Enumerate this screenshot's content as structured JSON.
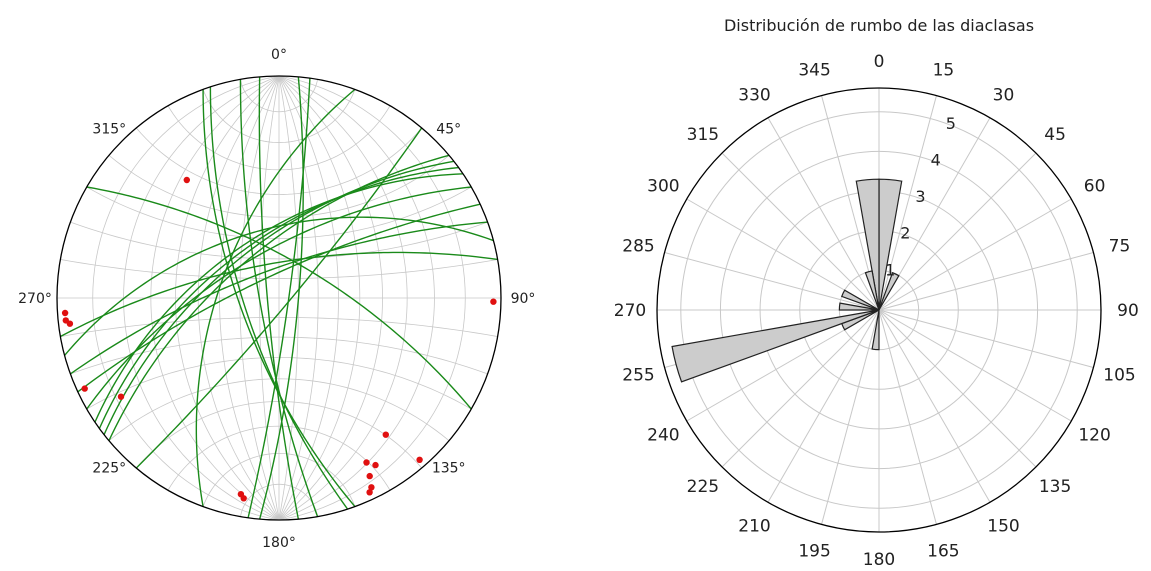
{
  "chart_data": [
    {
      "type": "stereonet",
      "title": "",
      "direction_labels": [
        "0°",
        "45°",
        "90°",
        "135°",
        "180°",
        "225°",
        "270°",
        "315°"
      ],
      "colors": {
        "great_circle": "#1a8a1a",
        "pole": "#e01010",
        "grid": "#c8c8c8",
        "outline": "#000000"
      },
      "great_circles": [
        {
          "strike": 5,
          "dip": 80
        },
        {
          "strike": 8,
          "dip": 85
        },
        {
          "strike": 175,
          "dip": 84
        },
        {
          "strike": 170,
          "dip": 80
        },
        {
          "strike": 160,
          "dip": 70
        },
        {
          "strike": 162,
          "dip": 72
        },
        {
          "strike": 40,
          "dip": 85
        },
        {
          "strike": 230,
          "dip": 65
        },
        {
          "strike": 232,
          "dip": 62
        },
        {
          "strike": 234,
          "dip": 60
        },
        {
          "strike": 236,
          "dip": 58
        },
        {
          "strike": 240,
          "dip": 66
        },
        {
          "strike": 250,
          "dip": 75
        },
        {
          "strike": 255,
          "dip": 55
        },
        {
          "strike": 260,
          "dip": 72
        },
        {
          "strike": 245,
          "dip": 78
        },
        {
          "strike": 200,
          "dip": 60
        },
        {
          "strike": 300,
          "dip": 70
        }
      ],
      "poles": [
        {
          "trend": 322,
          "plunge": 22
        },
        {
          "trend": 91,
          "plunge": 2
        },
        {
          "trend": 266,
          "plunge": 2
        },
        {
          "trend": 264,
          "plunge": 2
        },
        {
          "trend": 263,
          "plunge": 3
        },
        {
          "trend": 245,
          "plunge": 2
        },
        {
          "trend": 238,
          "plunge": 10
        },
        {
          "trend": 190,
          "plunge": 5
        },
        {
          "trend": 191,
          "plunge": 6
        },
        {
          "trend": 152,
          "plunge": 10
        },
        {
          "trend": 150,
          "plunge": 8
        },
        {
          "trend": 153,
          "plunge": 6
        },
        {
          "trend": 154,
          "plunge": 3
        },
        {
          "trend": 155,
          "plunge": 2
        },
        {
          "trend": 142,
          "plunge": 14
        },
        {
          "trend": 139,
          "plunge": 2
        }
      ]
    },
    {
      "type": "polar_bar",
      "title": "Distribución de rumbo de las diaclasas",
      "angle_ticks": [
        0,
        15,
        30,
        45,
        60,
        75,
        90,
        105,
        120,
        135,
        150,
        165,
        180,
        195,
        210,
        225,
        240,
        255,
        270,
        285,
        300,
        315,
        330,
        345
      ],
      "radial_ticks": [
        1,
        2,
        3,
        4,
        5
      ],
      "rmax": 5.6,
      "bin_width_deg": 10,
      "colors": {
        "bar_fill": "#cccccc",
        "bar_edge": "#222222",
        "grid": "#c8c8c8",
        "outline": "#000000"
      },
      "bars": [
        {
          "start": 0,
          "value": 3.3
        },
        {
          "start": 350,
          "value": 3.3
        },
        {
          "start": 20,
          "value": 1.0
        },
        {
          "start": 340,
          "value": 1.0
        },
        {
          "start": 290,
          "value": 1.0
        },
        {
          "start": 270,
          "value": 1.0
        },
        {
          "start": 240,
          "value": 1.0
        },
        {
          "start": 180,
          "value": 1.0
        },
        {
          "start": 250,
          "value": 5.3
        }
      ]
    }
  ]
}
